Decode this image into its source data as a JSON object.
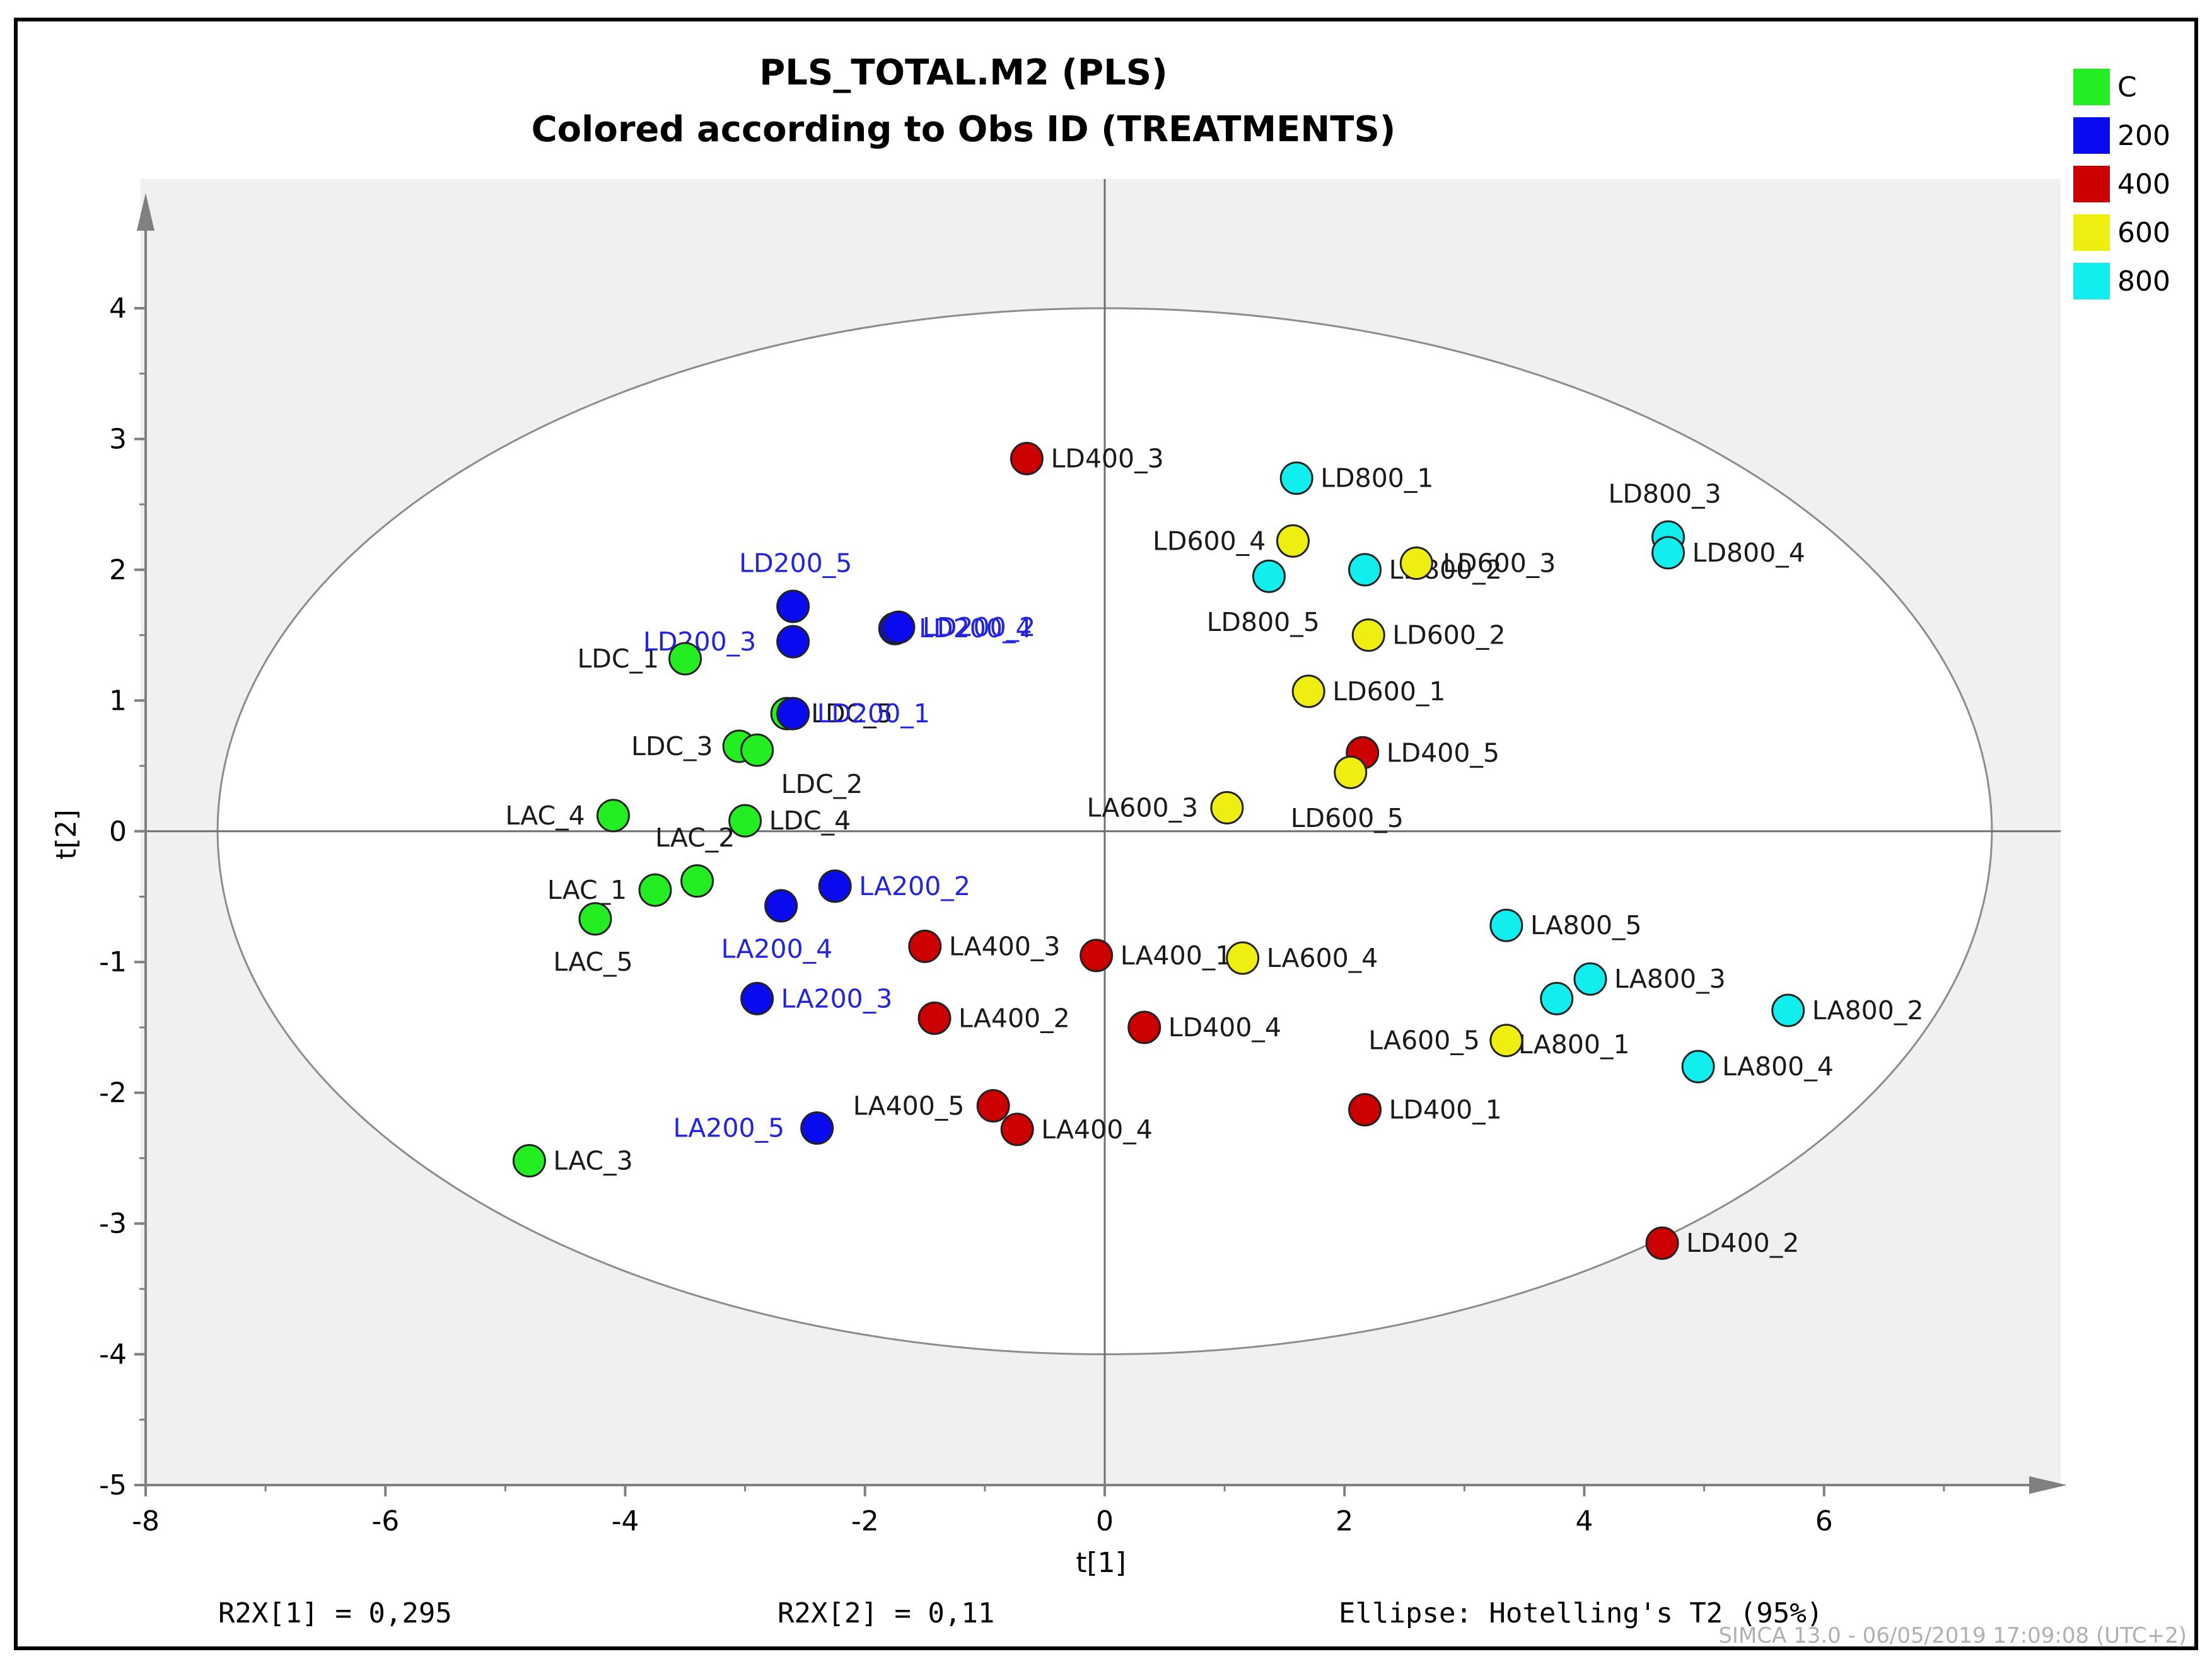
{
  "chart_data": {
    "type": "scatter",
    "title": "PLS_TOTAL.M2 (PLS)",
    "subtitle": "Colored according to Obs ID (TREATMENTS)",
    "xlabel": "t[1]",
    "ylabel": "t[2]",
    "xlim": [
      -8,
      8
    ],
    "ylim": [
      -5,
      5
    ],
    "xticks": [
      -8,
      -6,
      -4,
      -2,
      0,
      2,
      4,
      6
    ],
    "yticks": [
      -5,
      -4,
      -3,
      -2,
      -1,
      0,
      1,
      2,
      3,
      4
    ],
    "ellipse": {
      "center": [
        0,
        0
      ],
      "semi_x": 7.4,
      "semi_y": 4.0
    },
    "legend": [
      {
        "label": "C",
        "color": "#22ee22"
      },
      {
        "label": "200",
        "color": "#0a0aee"
      },
      {
        "label": "400",
        "color": "#cc0000"
      },
      {
        "label": "600",
        "color": "#eeee11"
      },
      {
        "label": "800",
        "color": "#11eeee"
      }
    ],
    "points": [
      {
        "label": "LDC_1",
        "group": "C",
        "x": -3.5,
        "y": 1.32,
        "lx": -4.4,
        "ly": 1.32
      },
      {
        "label": "LDC_5",
        "group": "C",
        "x": -2.65,
        "y": 0.9,
        "lx": -2.45,
        "ly": 0.9
      },
      {
        "label": "LDC_3",
        "group": "C",
        "x": -3.05,
        "y": 0.65,
        "lx": -3.95,
        "ly": 0.65
      },
      {
        "label": "LDC_2",
        "group": "C",
        "x": -2.9,
        "y": 0.62,
        "lx": -2.7,
        "ly": 0.36
      },
      {
        "label": "LDC_4",
        "group": "C",
        "x": -3.0,
        "y": 0.08,
        "lx": -2.8,
        "ly": 0.08
      },
      {
        "label": "LAC_4",
        "group": "C",
        "x": -4.1,
        "y": 0.12,
        "lx": -5.0,
        "ly": 0.12
      },
      {
        "label": "LAC_2",
        "group": "C",
        "x": -3.4,
        "y": -0.38,
        "lx": -3.75,
        "ly": -0.05
      },
      {
        "label": "LAC_1",
        "group": "C",
        "x": -3.75,
        "y": -0.45,
        "lx": -4.65,
        "ly": -0.45
      },
      {
        "label": "LAC_5",
        "group": "C",
        "x": -4.25,
        "y": -0.67,
        "lx": -4.6,
        "ly": -1.0
      },
      {
        "label": "LAC_3",
        "group": "C",
        "x": -4.8,
        "y": -2.52,
        "lx": -4.6,
        "ly": -2.52
      },
      {
        "label": "LD200_5",
        "group": "200",
        "x": -2.6,
        "y": 1.72,
        "lx": -3.05,
        "ly": 2.05
      },
      {
        "label": "LD200_3",
        "group": "200",
        "x": -2.6,
        "y": 1.45,
        "lx": -3.85,
        "ly": 1.45
      },
      {
        "label": "LD200_4",
        "group": "200",
        "x": -1.75,
        "y": 1.55,
        "lx": -1.55,
        "ly": 1.55
      },
      {
        "label": "LD200_2",
        "group": "200",
        "x": -1.72,
        "y": 1.56,
        "lx": -1.52,
        "ly": 1.56
      },
      {
        "label": "LD200_1",
        "group": "200",
        "x": -2.6,
        "y": 0.9,
        "lx": -2.4,
        "ly": 0.9
      },
      {
        "label": "LA200_2",
        "group": "200",
        "x": -2.25,
        "y": -0.42,
        "lx": -2.05,
        "ly": -0.42
      },
      {
        "label": "LA200_4",
        "group": "200",
        "x": -2.7,
        "y": -0.57,
        "lx": -3.2,
        "ly": -0.9
      },
      {
        "label": "LA200_3",
        "group": "200",
        "x": -2.9,
        "y": -1.28,
        "lx": -2.7,
        "ly": -1.28
      },
      {
        "label": "LA200_5",
        "group": "200",
        "x": -2.4,
        "y": -2.27,
        "lx": -3.6,
        "ly": -2.27
      },
      {
        "label": "LD400_3",
        "group": "400",
        "x": -0.65,
        "y": 2.85,
        "lx": -0.45,
        "ly": 2.85
      },
      {
        "label": "LA400_3",
        "group": "400",
        "x": -1.5,
        "y": -0.88,
        "lx": -1.3,
        "ly": -0.88
      },
      {
        "label": "LA400_1",
        "group": "400",
        "x": -0.07,
        "y": -0.95,
        "lx": 0.13,
        "ly": -0.95
      },
      {
        "label": "LA400_2",
        "group": "400",
        "x": -1.42,
        "y": -1.43,
        "lx": -1.22,
        "ly": -1.43
      },
      {
        "label": "LD400_4",
        "group": "400",
        "x": 0.33,
        "y": -1.5,
        "lx": 0.53,
        "ly": -1.5
      },
      {
        "label": "LA400_5",
        "group": "400",
        "x": -0.93,
        "y": -2.1,
        "lx": -2.1,
        "ly": -2.1
      },
      {
        "label": "LA400_4",
        "group": "400",
        "x": -0.73,
        "y": -2.28,
        "lx": -0.53,
        "ly": -2.28
      },
      {
        "label": "LD400_5",
        "group": "400",
        "x": 2.15,
        "y": 0.6,
        "lx": 2.35,
        "ly": 0.6
      },
      {
        "label": "LD400_1",
        "group": "400",
        "x": 2.17,
        "y": -2.13,
        "lx": 2.37,
        "ly": -2.13
      },
      {
        "label": "LD400_2",
        "group": "400",
        "x": 4.65,
        "y": -3.15,
        "lx": 4.85,
        "ly": -3.15
      },
      {
        "label": "LD600_4",
        "group": "600",
        "x": 1.57,
        "y": 2.22,
        "lx": 0.4,
        "ly": 2.22
      },
      {
        "label": "LD600_3",
        "group": "600",
        "x": 2.6,
        "y": 2.05,
        "lx": 2.82,
        "ly": 2.05
      },
      {
        "label": "LD600_2",
        "group": "600",
        "x": 2.2,
        "y": 1.5,
        "lx": 2.4,
        "ly": 1.5
      },
      {
        "label": "LD600_1",
        "group": "600",
        "x": 1.7,
        "y": 1.07,
        "lx": 1.9,
        "ly": 1.07
      },
      {
        "label": "LD600_5",
        "group": "600",
        "x": 2.05,
        "y": 0.45,
        "lx": 1.55,
        "ly": 0.1
      },
      {
        "label": "LA600_3",
        "group": "600",
        "x": 1.02,
        "y": 0.18,
        "lx": -0.15,
        "ly": 0.18
      },
      {
        "label": "LA600_4",
        "group": "600",
        "x": 1.15,
        "y": -0.97,
        "lx": 1.35,
        "ly": -0.97
      },
      {
        "label": "LA600_5",
        "group": "600",
        "x": 3.35,
        "y": -1.6,
        "lx": 2.2,
        "ly": -1.6
      },
      {
        "label": "LD800_1",
        "group": "800",
        "x": 1.6,
        "y": 2.7,
        "lx": 1.8,
        "ly": 2.7
      },
      {
        "label": "LD800_5",
        "group": "800",
        "x": 1.37,
        "y": 1.95,
        "lx": 0.85,
        "ly": 1.6
      },
      {
        "label": "LD800_2",
        "group": "800",
        "x": 2.17,
        "y": 2.0,
        "lx": 2.37,
        "ly": 2.0
      },
      {
        "label": "LD800_3",
        "group": "800",
        "x": 4.7,
        "y": 2.25,
        "lx": 4.2,
        "ly": 2.58
      },
      {
        "label": "LD800_4",
        "group": "800",
        "x": 4.7,
        "y": 2.13,
        "lx": 4.9,
        "ly": 2.13
      },
      {
        "label": "LA800_5",
        "group": "800",
        "x": 3.35,
        "y": -0.72,
        "lx": 3.55,
        "ly": -0.72
      },
      {
        "label": "LA800_3",
        "group": "800",
        "x": 4.05,
        "y": -1.13,
        "lx": 4.25,
        "ly": -1.13
      },
      {
        "label": "LA800_1",
        "group": "800",
        "x": 3.77,
        "y": -1.28,
        "lx": 3.45,
        "ly": -1.63
      },
      {
        "label": "LA800_2",
        "group": "800",
        "x": 5.7,
        "y": -1.37,
        "lx": 5.9,
        "ly": -1.37
      },
      {
        "label": "LA800_4",
        "group": "800",
        "x": 4.95,
        "y": -1.8,
        "lx": 5.15,
        "ly": -1.8
      }
    ]
  },
  "stats": {
    "r2x1": "R2X[1] = 0,295",
    "r2x2": "R2X[2] = 0,11",
    "ellipse": "Ellipse: Hotelling's T2 (95%)"
  },
  "footer": "SIMCA 13.0 - 06/05/2019 17:09:08 (UTC+2)"
}
